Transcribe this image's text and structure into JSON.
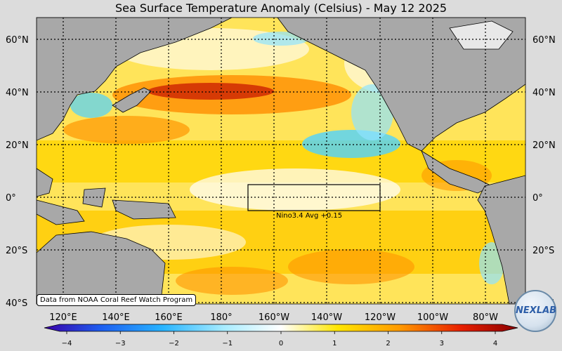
{
  "title": "Sea Surface Temperature Anomaly (Celsius) - May 12 2025",
  "map": {
    "lat_labels": [
      "60°N",
      "40°N",
      "20°N",
      "0°",
      "20°S",
      "40°S"
    ],
    "lon_labels": [
      "120°E",
      "140°E",
      "160°E",
      "180°",
      "160°W",
      "140°W",
      "120°W",
      "100°W",
      "80°W"
    ],
    "nino_box_label": "Nino3.4 Avg  +0.15",
    "land_color": "#a8a8a8",
    "ocean_colors": {
      "neutral": "#ffffff",
      "warm": "#ffd400",
      "hot": "#ff6a00",
      "very_hot": "#c00000",
      "cool": "#4fd2ff",
      "cold": "#2a6aff"
    }
  },
  "credit": "Data from NOAA Coral Reef Watch Program",
  "logo": {
    "text": "NEXLAB",
    "icon": "globe-logo-icon"
  },
  "colorbar": {
    "ticks": [
      "−4",
      "−3",
      "−2",
      "−1",
      "0",
      "1",
      "2",
      "3",
      "4"
    ],
    "colors": [
      "#3a00a8",
      "#1d5ef0",
      "#28b4ff",
      "#a8ecff",
      "#ffffff",
      "#ffe600",
      "#ff9a00",
      "#e82000",
      "#8a0000"
    ]
  }
}
